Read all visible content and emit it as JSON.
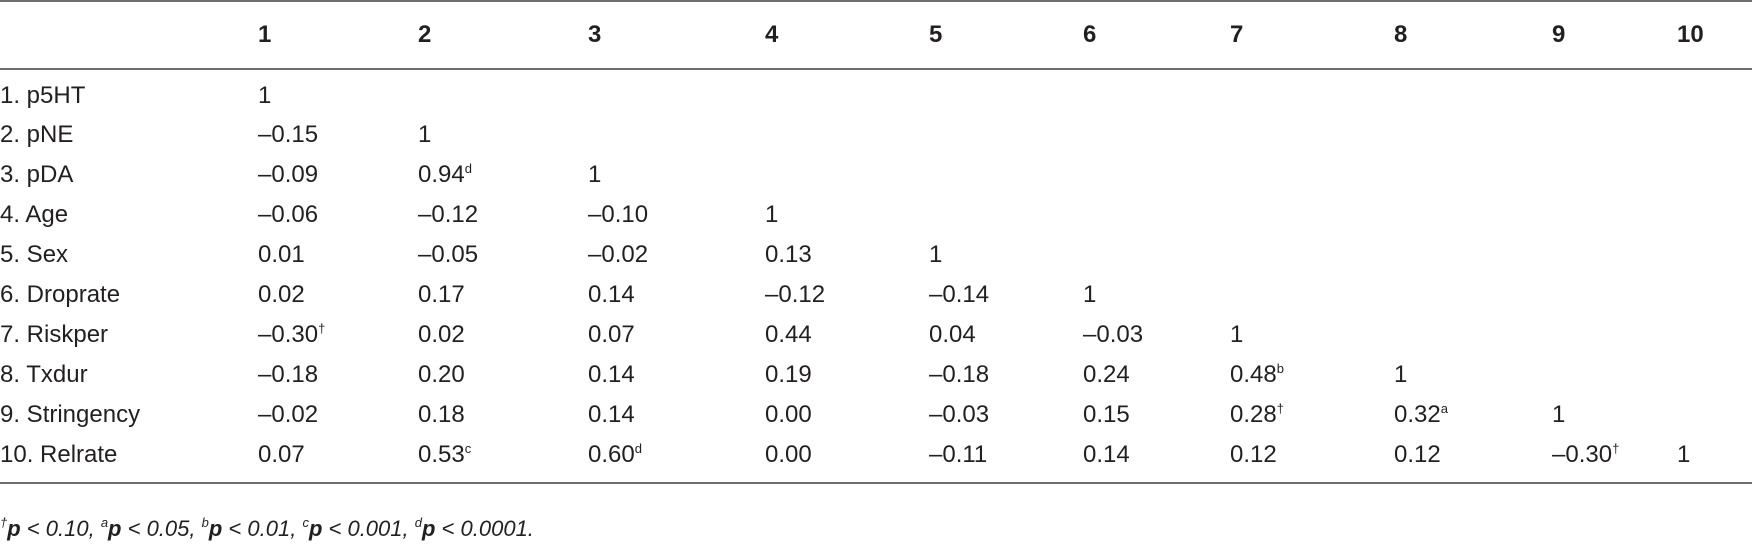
{
  "table": {
    "columns": [
      "1",
      "2",
      "3",
      "4",
      "5",
      "6",
      "7",
      "8",
      "9",
      "10"
    ],
    "rows": [
      {
        "label": "1. p5HT",
        "cells": [
          {
            "v": "1"
          }
        ]
      },
      {
        "label": "2. pNE",
        "cells": [
          {
            "v": "–0.15"
          },
          {
            "v": "1"
          }
        ]
      },
      {
        "label": "3. pDA",
        "cells": [
          {
            "v": "–0.09"
          },
          {
            "v": "0.94",
            "sup": "d"
          },
          {
            "v": "1"
          }
        ]
      },
      {
        "label": "4. Age",
        "cells": [
          {
            "v": "–0.06"
          },
          {
            "v": "–0.12"
          },
          {
            "v": "–0.10"
          },
          {
            "v": "1"
          }
        ]
      },
      {
        "label": "5. Sex",
        "cells": [
          {
            "v": "0.01"
          },
          {
            "v": "–0.05"
          },
          {
            "v": "–0.02"
          },
          {
            "v": "0.13"
          },
          {
            "v": "1"
          }
        ]
      },
      {
        "label": "6. Droprate",
        "cells": [
          {
            "v": "0.02"
          },
          {
            "v": "0.17"
          },
          {
            "v": "0.14"
          },
          {
            "v": "–0.12"
          },
          {
            "v": "–0.14"
          },
          {
            "v": "1"
          }
        ]
      },
      {
        "label": "7. Riskper",
        "cells": [
          {
            "v": "–0.30",
            "sup": "†"
          },
          {
            "v": "0.02"
          },
          {
            "v": "0.07"
          },
          {
            "v": "0.44"
          },
          {
            "v": "0.04"
          },
          {
            "v": "–0.03"
          },
          {
            "v": "1"
          }
        ]
      },
      {
        "label": "8. Txdur",
        "cells": [
          {
            "v": "–0.18"
          },
          {
            "v": "0.20"
          },
          {
            "v": "0.14"
          },
          {
            "v": "0.19"
          },
          {
            "v": "–0.18"
          },
          {
            "v": "0.24"
          },
          {
            "v": "0.48",
            "sup": "b"
          },
          {
            "v": "1"
          }
        ]
      },
      {
        "label": "9. Stringency",
        "cells": [
          {
            "v": "–0.02"
          },
          {
            "v": "0.18"
          },
          {
            "v": "0.14"
          },
          {
            "v": "0.00"
          },
          {
            "v": "–0.03"
          },
          {
            "v": "0.15"
          },
          {
            "v": "0.28",
            "sup": "†"
          },
          {
            "v": "0.32",
            "sup": "a"
          },
          {
            "v": "1"
          }
        ]
      },
      {
        "label": "10. Relrate",
        "cells": [
          {
            "v": "0.07"
          },
          {
            "v": "0.53",
            "sup": "c"
          },
          {
            "v": "0.60",
            "sup": "d"
          },
          {
            "v": "0.00"
          },
          {
            "v": "–0.11"
          },
          {
            "v": "0.14"
          },
          {
            "v": "0.12"
          },
          {
            "v": "0.12"
          },
          {
            "v": "–0.30",
            "sup": "†"
          },
          {
            "v": "1"
          }
        ]
      }
    ]
  },
  "footnote": [
    {
      "sym": "†",
      "p": "p",
      "rest": " < 0.10, "
    },
    {
      "sym": "a",
      "p": "p",
      "rest": " < 0.05, "
    },
    {
      "sym": "b",
      "p": "p",
      "rest": " < 0.01, "
    },
    {
      "sym": "c",
      "p": "p",
      "rest": " < 0.001, "
    },
    {
      "sym": "d",
      "p": "p",
      "rest": " < 0.0001."
    }
  ]
}
